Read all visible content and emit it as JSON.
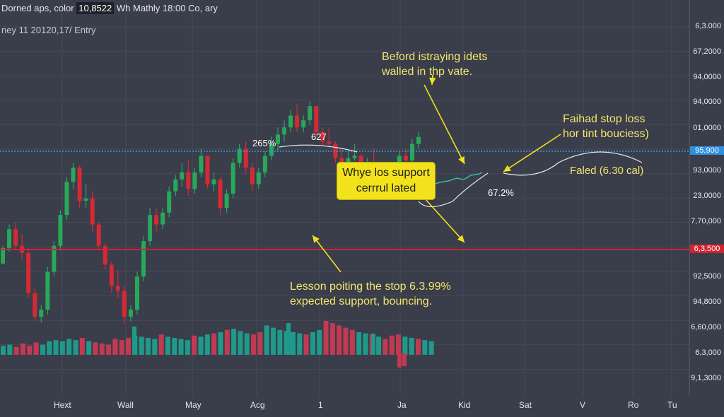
{
  "header": {
    "title_prefix": "Dorned aps, color",
    "value_badge": "10,8522",
    "title_suffix": "Wh Mathly 18:00 Co, ary",
    "subtitle": "ney 11 20120,17/ Entry"
  },
  "colors": {
    "background": "#3a3d4a",
    "up_candle": "#27a85a",
    "down_candle": "#d42a35",
    "support_line": "#d22331",
    "dotted_line": "#2f9be5",
    "annotation": "#f2e66d",
    "callout_bg": "#f2e21b",
    "blue_badge": "#2f8fe0",
    "red_badge": "#d22331"
  },
  "annotations": {
    "top_note": [
      "Beford istraying idets",
      "walled in thp vate."
    ],
    "right_note": [
      "Faihad stop loss",
      "hor tint bouciess)"
    ],
    "right_small": "Faled (6.30 cal)",
    "callout": [
      "Whye los support",
      "cerrrul lated"
    ],
    "bottom_note": [
      "Lesson poiting the stop 6.3.99%",
      "expected support, bouncing."
    ],
    "pct_left": "265%",
    "pct_peak": "627",
    "pct_mid": "67.2%"
  },
  "chart_data": {
    "type": "candlestick",
    "x_ticks": [
      "Hext",
      "Wall",
      "May",
      "Acg",
      "1",
      "Ja",
      "Kid",
      "Sat",
      "V",
      "Ro",
      "Tu"
    ],
    "y_ticks": [
      "6,3.000",
      "67,2000",
      "94,0000",
      "94,0000",
      "01,0000",
      "95,900",
      "93,0000",
      "23,0000",
      "7,70,000",
      "6,3,500",
      "92,5000",
      "94,8000",
      "6,60,000",
      "6,3,000",
      "9,1,3000"
    ],
    "current_price_badge": "95,900",
    "support_badge": "6,3,500",
    "grid": true,
    "candles": [
      [
        215,
        230,
        228,
        214
      ],
      [
        228,
        248,
        244,
        225
      ],
      [
        244,
        250,
        230,
        226
      ],
      [
        230,
        240,
        224,
        218
      ],
      [
        224,
        228,
        190,
        186
      ],
      [
        190,
        194,
        170,
        166
      ],
      [
        170,
        180,
        176,
        165
      ],
      [
        176,
        212,
        208,
        172
      ],
      [
        208,
        234,
        230,
        204
      ],
      [
        230,
        260,
        256,
        226
      ],
      [
        256,
        288,
        284,
        252
      ],
      [
        284,
        300,
        296,
        278
      ],
      [
        296,
        298,
        268,
        262
      ],
      [
        268,
        282,
        270,
        262
      ],
      [
        270,
        276,
        248,
        242
      ],
      [
        248,
        250,
        230,
        226
      ],
      [
        230,
        232,
        214,
        210
      ],
      [
        214,
        216,
        196,
        190
      ],
      [
        196,
        210,
        192,
        186
      ],
      [
        192,
        196,
        170,
        164
      ],
      [
        170,
        180,
        176,
        166
      ],
      [
        176,
        208,
        204,
        172
      ],
      [
        204,
        238,
        234,
        200
      ],
      [
        234,
        262,
        256,
        230
      ],
      [
        256,
        262,
        248,
        242
      ],
      [
        248,
        262,
        258,
        244
      ],
      [
        258,
        280,
        276,
        254
      ],
      [
        276,
        290,
        286,
        272
      ],
      [
        286,
        300,
        292,
        280
      ],
      [
        292,
        302,
        278,
        272
      ],
      [
        278,
        296,
        292,
        274
      ],
      [
        292,
        312,
        306,
        288
      ],
      [
        306,
        304,
        282,
        278
      ],
      [
        282,
        292,
        286,
        276
      ],
      [
        286,
        288,
        262,
        256
      ],
      [
        262,
        278,
        274,
        258
      ],
      [
        274,
        304,
        300,
        270
      ],
      [
        300,
        316,
        312,
        296
      ],
      [
        312,
        318,
        296,
        290
      ],
      [
        296,
        300,
        282,
        276
      ],
      [
        282,
        296,
        292,
        278
      ],
      [
        292,
        310,
        306,
        288
      ],
      [
        306,
        322,
        316,
        302
      ],
      [
        316,
        330,
        324,
        310
      ],
      [
        324,
        336,
        330,
        318
      ],
      [
        330,
        345,
        340,
        326
      ],
      [
        340,
        350,
        330,
        326
      ],
      [
        330,
        340,
        336,
        326
      ],
      [
        336,
        352,
        348,
        332
      ],
      [
        348,
        340,
        326,
        322
      ],
      [
        326,
        330,
        318,
        314
      ],
      [
        318,
        330,
        316,
        312
      ],
      [
        316,
        318,
        304,
        300
      ],
      [
        304,
        312,
        300,
        296
      ],
      [
        300,
        310,
        304,
        296
      ],
      [
        304,
        316,
        306,
        302
      ],
      [
        306,
        308,
        296,
        292
      ],
      [
        296,
        304,
        300,
        292
      ],
      [
        300,
        312,
        296,
        292
      ],
      [
        296,
        298,
        288,
        280
      ],
      [
        288,
        296,
        286,
        276
      ],
      [
        286,
        298,
        294,
        282
      ],
      [
        294,
        310,
        306,
        290
      ],
      [
        306,
        312,
        302,
        296
      ],
      [
        302,
        320,
        316,
        298
      ],
      [
        316,
        326,
        322,
        312
      ]
    ],
    "volume": [
      8,
      9,
      7,
      10,
      8,
      11,
      9,
      12,
      13,
      12,
      14,
      13,
      15,
      12,
      11,
      10,
      9,
      14,
      13,
      15,
      17,
      16,
      15,
      14,
      18,
      16,
      15,
      14,
      13,
      17,
      16,
      18,
      19,
      20,
      22,
      23,
      21,
      19,
      18,
      20,
      26,
      24,
      22,
      21,
      20,
      19,
      18,
      20,
      22,
      30,
      28,
      26,
      24,
      22,
      20,
      19,
      18,
      16,
      14,
      17,
      18,
      16,
      15,
      14,
      13,
      12
    ]
  }
}
